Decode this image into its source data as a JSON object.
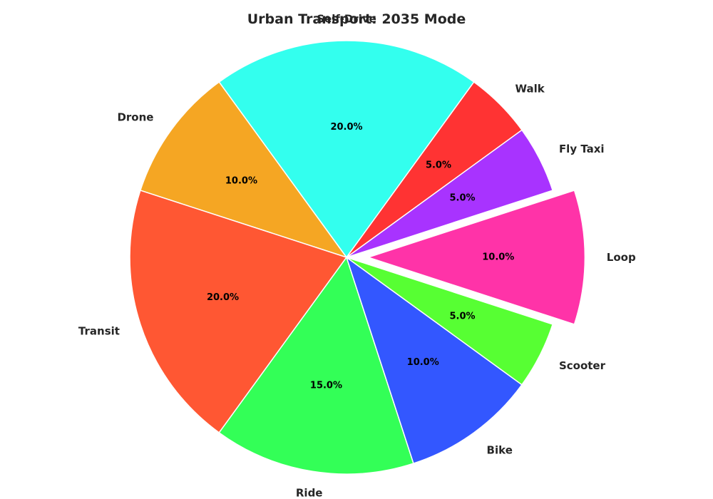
{
  "chart_data": {
    "type": "pie",
    "title": "Urban Transport: 2035 Mode",
    "slices": [
      {
        "label": "Self-Drive",
        "value": 20.0,
        "pct_label": "20.0%",
        "color": "#33ffee",
        "exploded": false
      },
      {
        "label": "Drone",
        "value": 10.0,
        "pct_label": "10.0%",
        "color": "#f5a623",
        "exploded": false
      },
      {
        "label": "Transit",
        "value": 20.0,
        "pct_label": "20.0%",
        "color": "#ff5733",
        "exploded": false
      },
      {
        "label": "Ride",
        "value": 15.0,
        "pct_label": "15.0%",
        "color": "#33ff57",
        "exploded": false
      },
      {
        "label": "Bike",
        "value": 10.0,
        "pct_label": "10.0%",
        "color": "#3357ff",
        "exploded": false
      },
      {
        "label": "Scooter",
        "value": 5.0,
        "pct_label": "5.0%",
        "color": "#57ff33",
        "exploded": false
      },
      {
        "label": "Loop",
        "value": 10.0,
        "pct_label": "10.0%",
        "color": "#ff33a8",
        "exploded": true
      },
      {
        "label": "Fly Taxi",
        "value": 5.0,
        "pct_label": "5.0%",
        "color": "#a833ff",
        "exploded": false
      },
      {
        "label": "Walk",
        "value": 5.0,
        "pct_label": "5.0%",
        "color": "#ff3333",
        "exploded": false
      }
    ],
    "start_angle_deg": 54,
    "direction": "counterclockwise",
    "legend": "none"
  }
}
